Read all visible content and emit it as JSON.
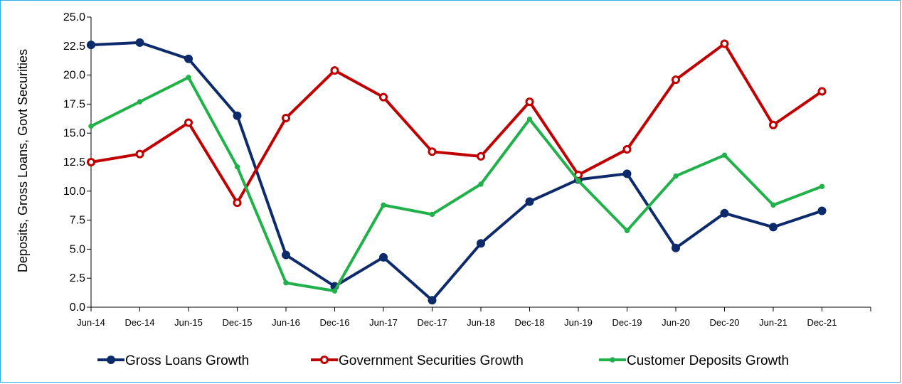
{
  "chart_data": {
    "type": "line",
    "title": "",
    "xlabel": "",
    "ylabel": "Deposits, Gross Loans, Govt Securities",
    "ylim": [
      0,
      25
    ],
    "yticks": [
      "0.0",
      "2.5",
      "5.0",
      "7.5",
      "10.0",
      "12.5",
      "15.0",
      "17.5",
      "20.0",
      "22.5",
      "25.0"
    ],
    "categories": [
      "Jun-14",
      "Dec-14",
      "Jun-15",
      "Dec-15",
      "Jun-16",
      "Dec-16",
      "Jun-17",
      "Dec-17",
      "Jun-18",
      "Dec-18",
      "Jun-19",
      "Dec-19",
      "Jun-20",
      "Dec-20",
      "Jun-21",
      "Dec-21"
    ],
    "grid": false,
    "legend_position": "bottom",
    "series": [
      {
        "name": "Gross Loans Growth",
        "color": "#0d2a6b",
        "marker": "filled-circle",
        "values": [
          22.6,
          22.8,
          21.4,
          16.5,
          4.5,
          1.8,
          4.3,
          0.6,
          5.5,
          9.1,
          11.0,
          11.5,
          5.1,
          8.1,
          6.9,
          8.3
        ]
      },
      {
        "name": "Government Securities Growth",
        "color": "#c00000",
        "marker": "hollow-circle",
        "values": [
          12.5,
          13.2,
          15.9,
          9.0,
          16.3,
          20.4,
          18.1,
          13.4,
          13.0,
          17.7,
          11.4,
          13.6,
          19.6,
          22.7,
          15.7,
          18.6
        ]
      },
      {
        "name": "Customer Deposits Growth",
        "color": "#21b14b",
        "marker": "small-dot",
        "values": [
          15.6,
          17.7,
          19.8,
          12.1,
          2.1,
          1.4,
          8.8,
          8.0,
          10.6,
          16.2,
          10.9,
          6.6,
          11.3,
          13.1,
          8.8,
          10.4
        ]
      }
    ]
  }
}
